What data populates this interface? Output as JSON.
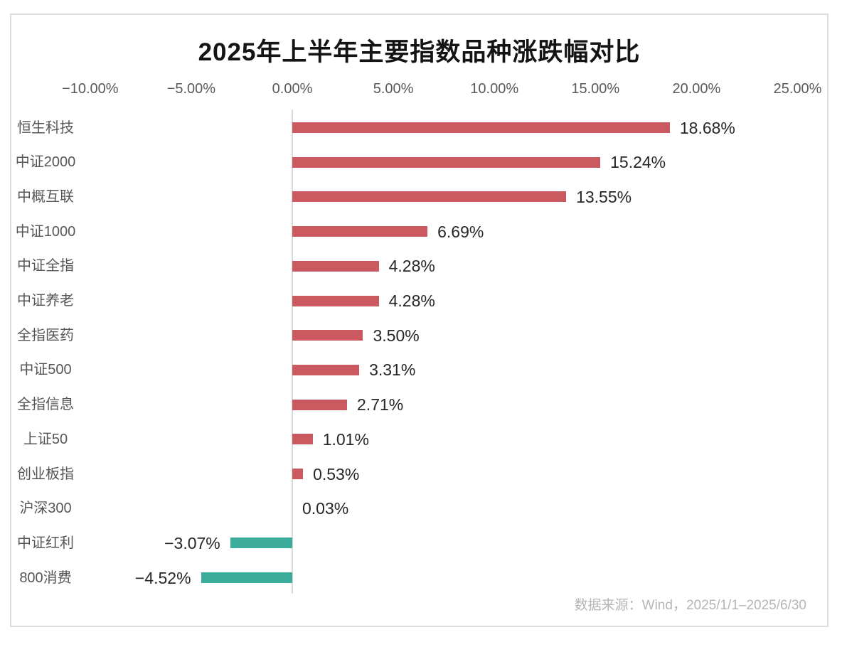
{
  "chart_data": {
    "type": "bar",
    "orientation": "horizontal",
    "title": "2025年上半年主要指数品种涨跌幅对比",
    "categories": [
      "恒生科技",
      "中证2000",
      "中概互联",
      "中证1000",
      "中证全指",
      "中证养老",
      "全指医药",
      "中证500",
      "全指信息",
      "上证50",
      "创业板指",
      "沪深300",
      "中证红利",
      "800消费"
    ],
    "values": [
      18.68,
      15.24,
      13.55,
      6.69,
      4.28,
      4.28,
      3.5,
      3.31,
      2.71,
      1.01,
      0.53,
      0.03,
      -3.07,
      -4.52
    ],
    "value_labels": [
      "18.68%",
      "15.24%",
      "13.55%",
      "6.69%",
      "4.28%",
      "4.28%",
      "3.50%",
      "3.31%",
      "2.71%",
      "1.01%",
      "0.53%",
      "0.03%",
      "−3.07%",
      "−4.52%"
    ],
    "unit": "%",
    "xlabel": "",
    "ylabel": "",
    "xlim": [
      -10,
      25
    ],
    "x_ticks": {
      "values": [
        -10,
        -5,
        0,
        5,
        10,
        15,
        20,
        25
      ],
      "labels": [
        "−10.00%",
        "−5.00%",
        "0.00%",
        "5.00%",
        "10.00%",
        "15.00%",
        "20.00%",
        "25.00%"
      ]
    },
    "grid": false,
    "legend": "none",
    "value_label_position": "end-of-bar",
    "colors": {
      "positive": "#cb5a60",
      "negative": "#3bab9a",
      "zero_line": "#d9d9d9",
      "title": "#141414",
      "tick_text": "#595959",
      "category_text": "#565656",
      "value_text": "#262626",
      "source_text": "#b5b5b5"
    },
    "source_note": "数据来源：Wind，2025/1/1–2025/6/30"
  }
}
